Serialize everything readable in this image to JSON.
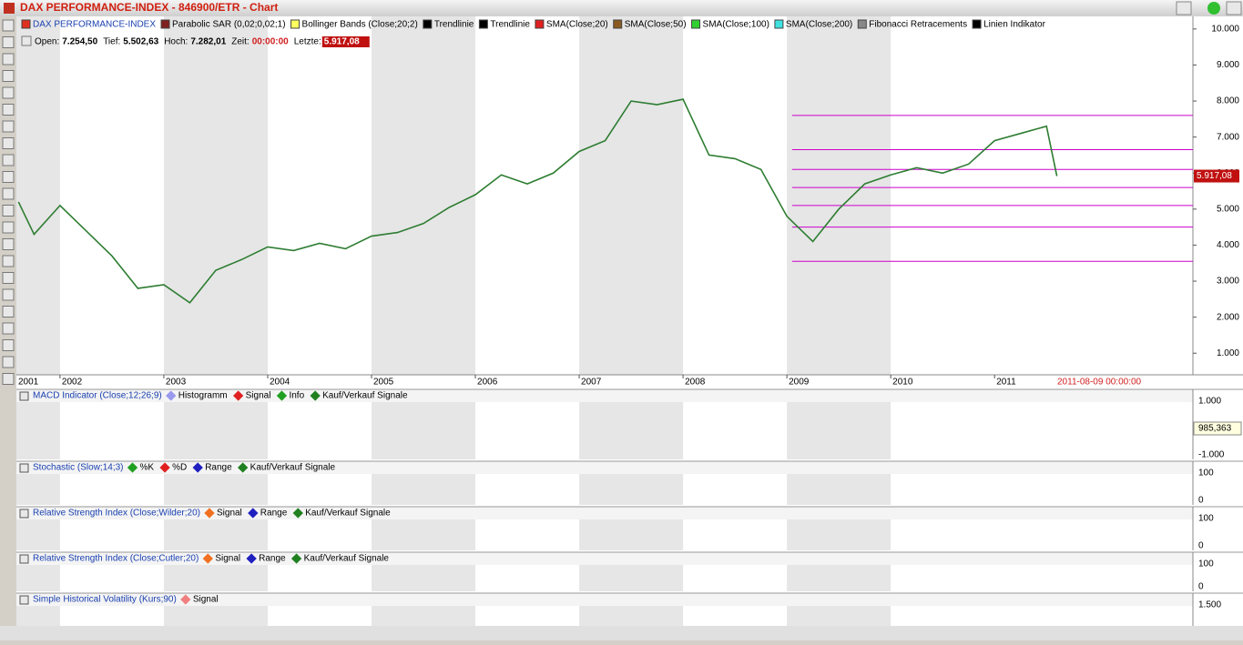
{
  "window": {
    "title": "DAX PERFORMANCE-INDEX - 846900/ETR - Chart"
  },
  "legend": [
    {
      "name": "DAX PERFORMANCE-INDEX",
      "color": "#e03020"
    },
    {
      "name": "Parabolic SAR (0,02;0,02;1)",
      "color": "#802020"
    },
    {
      "name": "Bollinger Bands (Close;20;2)",
      "color": "#ffff60"
    },
    {
      "name": "Trendlinie",
      "color": "#000000"
    },
    {
      "name": "Trendlinie",
      "color": "#000000"
    },
    {
      "name": "SMA(Close;20)",
      "color": "#e02020"
    },
    {
      "name": "SMA(Close;50)",
      "color": "#8a5a20"
    },
    {
      "name": "SMA(Close;100)",
      "color": "#30d030"
    },
    {
      "name": "SMA(Close;200)",
      "color": "#40e0e0"
    },
    {
      "name": "Fibonacci Retracements",
      "color": "#888888"
    },
    {
      "name": "Linien Indikator",
      "color": "#000000"
    }
  ],
  "info": {
    "open_label": "Open:",
    "open": "7.254,50",
    "low_label": "Tief:",
    "low": "5.502,63",
    "high_label": "Hoch:",
    "high": "7.282,01",
    "time_label": "Zeit:",
    "time": "00:00:00",
    "last_label": "Letzte:",
    "last": "5.917,08"
  },
  "chart_data": {
    "type": "line",
    "x": [
      2001.6,
      2001.75,
      2002.0,
      2002.25,
      2002.5,
      2002.75,
      2003.0,
      2003.25,
      2003.5,
      2003.75,
      2004.0,
      2004.25,
      2004.5,
      2004.75,
      2005.0,
      2005.25,
      2005.5,
      2005.75,
      2006.0,
      2006.25,
      2006.5,
      2006.75,
      2007.0,
      2007.25,
      2007.5,
      2007.75,
      2008.0,
      2008.25,
      2008.5,
      2008.75,
      2009.0,
      2009.25,
      2009.5,
      2009.75,
      2010.0,
      2010.25,
      2010.5,
      2010.75,
      2011.0,
      2011.25,
      2011.5,
      2011.6
    ],
    "series": [
      {
        "name": "DAX PERFORMANCE-INDEX",
        "color": "#2e7d32",
        "values": [
          5200,
          4300,
          5100,
          4400,
          3700,
          2800,
          2900,
          2400,
          3300,
          3600,
          3950,
          3850,
          4050,
          3900,
          4250,
          4350,
          4600,
          5050,
          5400,
          5950,
          5700,
          6000,
          6600,
          6900,
          8000,
          7900,
          8050,
          6500,
          6400,
          6100,
          4800,
          4100,
          5000,
          5700,
          5950,
          6150,
          6000,
          6250,
          6900,
          7100,
          7300,
          5917.08
        ]
      }
    ],
    "fibonacci": {
      "from": 2009.05,
      "color": "#cc00cc",
      "levels": [
        7600,
        6650,
        6100,
        5600,
        5100,
        4500,
        3550
      ]
    },
    "xlim": [
      2001.58,
      2012.91
    ],
    "ylim": [
      400,
      10350
    ],
    "xticks": [
      2001,
      2002,
      2003,
      2004,
      2005,
      2006,
      2007,
      2008,
      2009,
      2010,
      2011
    ],
    "yticks": [
      {
        "value": 1000,
        "label": "1.000"
      },
      {
        "value": 2000,
        "label": "2.000"
      },
      {
        "value": 3000,
        "label": "3.000"
      },
      {
        "value": 4000,
        "label": "4.000"
      },
      {
        "value": 5000,
        "label": "5.000"
      },
      {
        "value": 6000,
        "label": "6.000"
      },
      {
        "value": 7000,
        "label": "7.000"
      },
      {
        "value": 8000,
        "label": "8.000"
      },
      {
        "value": 9000,
        "label": "9.000"
      },
      {
        "value": 10000,
        "label": "10.000"
      }
    ],
    "last_price": {
      "value": 5917.08,
      "label": "5.917,08"
    },
    "cursor_date": "2011-08-09 00:00:00"
  },
  "panels": [
    {
      "title": "MACD Indicator (Close;12;26;9)",
      "legend": [
        {
          "name": "Histogramm",
          "color": "#9999ee"
        },
        {
          "name": "Signal",
          "color": "#e02020"
        },
        {
          "name": "Info",
          "color": "#20a020"
        },
        {
          "name": "Kauf/Verkauf Signale",
          "color": "#208020"
        }
      ],
      "ticks": [
        "1.000",
        "-1.000"
      ],
      "value": "985,363"
    },
    {
      "title": "Stochastic (Slow;14;3)",
      "legend": [
        {
          "name": "%K",
          "color": "#20a020"
        },
        {
          "name": "%D",
          "color": "#e02020"
        },
        {
          "name": "Range",
          "color": "#2020c0"
        },
        {
          "name": "Kauf/Verkauf Signale",
          "color": "#208020"
        }
      ],
      "ticks": [
        "100",
        "0"
      ]
    },
    {
      "title": "Relative Strength Index (Close;Wilder;20)",
      "legend": [
        {
          "name": "Signal",
          "color": "#f07020"
        },
        {
          "name": "Range",
          "color": "#2020c0"
        },
        {
          "name": "Kauf/Verkauf Signale",
          "color": "#208020"
        }
      ],
      "ticks": [
        "100",
        "0"
      ]
    },
    {
      "title": "Relative Strength Index (Close;Cutler;20)",
      "legend": [
        {
          "name": "Signal",
          "color": "#f07020"
        },
        {
          "name": "Range",
          "color": "#2020c0"
        },
        {
          "name": "Kauf/Verkauf Signale",
          "color": "#208020"
        }
      ],
      "ticks": [
        "100",
        "0"
      ]
    },
    {
      "title": "Simple Historical Volatility (Kurs;90)",
      "legend": [
        {
          "name": "Signal",
          "color": "#f08080"
        }
      ],
      "ticks": [
        "1.500"
      ]
    }
  ]
}
